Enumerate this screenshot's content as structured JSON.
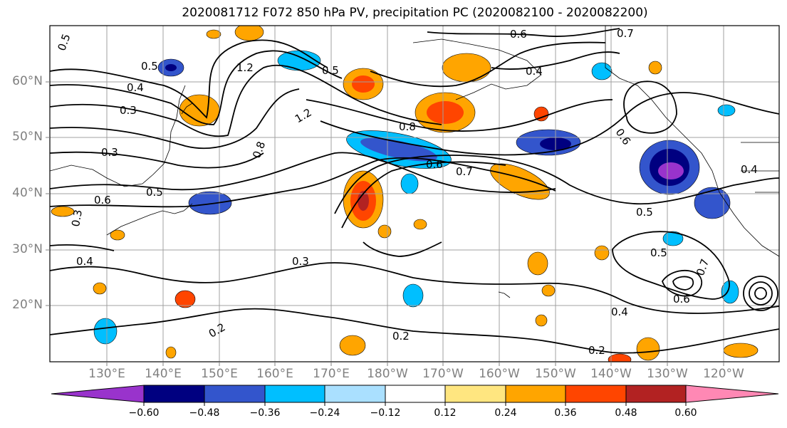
{
  "title": "2020081712 F072 850 hPa PV, precipitation PC (2020082100 - 2020082200)",
  "axes": {
    "lat_labels": [
      "60°N",
      "50°N",
      "40°N",
      "30°N",
      "20°N"
    ],
    "lon_labels": [
      "130°E",
      "140°E",
      "150°E",
      "160°E",
      "170°E",
      "180°W",
      "170°W",
      "160°W",
      "150°W",
      "140°W",
      "130°W",
      "120°W"
    ],
    "grid": true
  },
  "contour_labels": [
    "0.5",
    "0.5",
    "1.2",
    "0.5",
    "0.6",
    "0.7",
    "0.4",
    "0.4",
    "0.3",
    "1.2",
    "0.6",
    "0.3",
    "0.8",
    "0.6",
    "0.8",
    "0.7",
    "0.4",
    "0.5",
    "0.6",
    "0.5",
    "0.5",
    "0.3",
    "0.7",
    "0.4",
    "0.3",
    "0.6",
    "0.4",
    "0.2",
    "0.2",
    "0.2"
  ],
  "colorbar": {
    "ticks": [
      "−0.60",
      "−0.48",
      "−0.36",
      "−0.24",
      "−0.12",
      "0.12",
      "0.24",
      "0.36",
      "0.48",
      "0.60"
    ],
    "colors": [
      "#9933cc",
      "#000080",
      "#3355cc",
      "#00bfff",
      "#aae0ff",
      "#ffffff",
      "#ffe680",
      "#ffa500",
      "#ff4500",
      "#b22222",
      "#ff88b4"
    ]
  }
}
